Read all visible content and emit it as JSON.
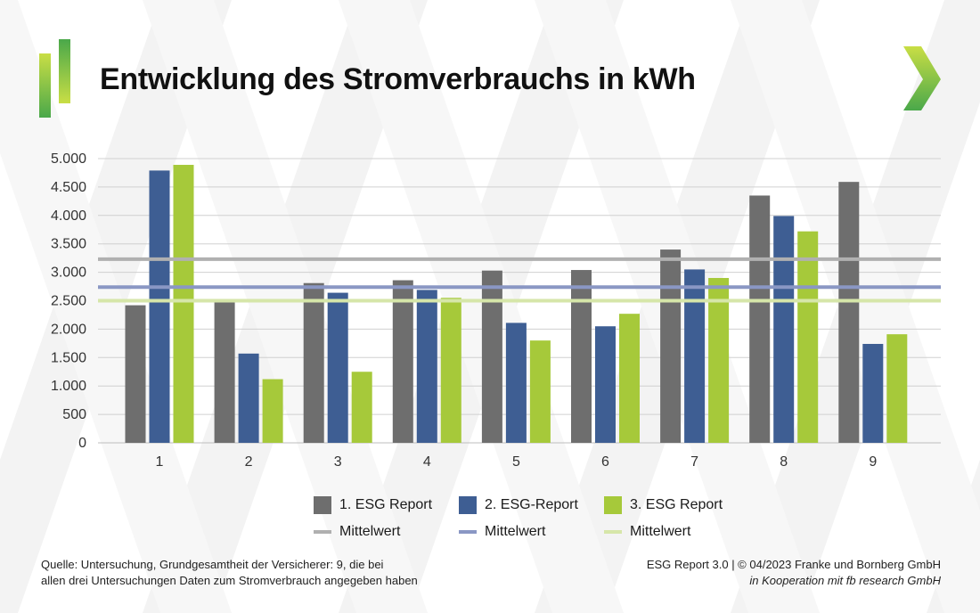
{
  "title": "Entwicklung des Stromverbrauchs in kWh",
  "colors": {
    "report1": "#6e6e6e",
    "report2": "#3e5e93",
    "report3": "#a6c93a",
    "mean1": "#b0b0b0",
    "mean2": "#8a97c4",
    "mean3": "#d6e6a9",
    "grid": "#d0d0d0",
    "accent": "#8dbf3e"
  },
  "icons": [
    "logo-bars-icon",
    "chevron-right-icon"
  ],
  "chart_data": {
    "type": "bar",
    "title": "Entwicklung des Stromverbrauchs in kWh",
    "xlabel": "",
    "ylabel": "",
    "categories": [
      "1",
      "2",
      "3",
      "4",
      "5",
      "6",
      "7",
      "8",
      "9"
    ],
    "ylim": [
      0,
      5000
    ],
    "yticks": [
      0,
      500,
      1000,
      1500,
      2000,
      2500,
      3000,
      3500,
      4000,
      4500,
      5000
    ],
    "ytick_labels": [
      "0",
      "500",
      "1.000",
      "1.500",
      "2.000",
      "2.500",
      "3.000",
      "3.500",
      "4.000",
      "4.500",
      "5.000"
    ],
    "grid": true,
    "legend_position": "bottom",
    "series": [
      {
        "name": "1. ESG Report",
        "values": [
          2420,
          2470,
          2810,
          2860,
          3030,
          3040,
          3400,
          4350,
          4590
        ]
      },
      {
        "name": "2. ESG-Report",
        "values": [
          4790,
          1570,
          2640,
          2690,
          2110,
          2050,
          3050,
          3990,
          1740
        ]
      },
      {
        "name": "3. ESG Report",
        "values": [
          4890,
          1120,
          1250,
          2550,
          1800,
          2270,
          2900,
          3720,
          1910
        ]
      }
    ],
    "mean_lines": [
      {
        "name": "Mittelwert",
        "value": 3230
      },
      {
        "name": "Mittelwert",
        "value": 2740
      },
      {
        "name": "Mittelwert",
        "value": 2500
      }
    ]
  },
  "footer": {
    "source_line1": "Quelle: Untersuchung, Grundgesamtheit der Versicherer: 9, die bei",
    "source_line2": "allen drei Untersuchungen Daten zum Stromverbrauch angegeben haben",
    "credit_line1": "ESG Report 3.0 | © 04/2023 Franke und Bornberg GmbH",
    "credit_line2": "in Kooperation mit fb research GmbH"
  }
}
